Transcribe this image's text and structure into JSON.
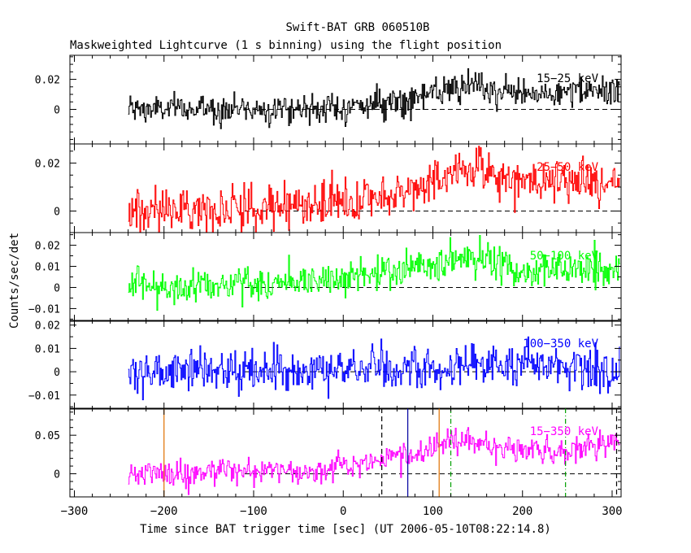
{
  "chart_data": {
    "type": "line",
    "title": "Swift-BAT GRB 060510B",
    "subtitle": "Maskweighted Lightcurve (1 s binning) using the flight position",
    "xlabel": "Time since BAT trigger time [sec] (UT 2006-05-10T08:22:14.8)",
    "ylabel": "Counts/sec/det",
    "xlim": [
      -305,
      310
    ],
    "xticks_major": [
      -300,
      -200,
      -100,
      0,
      100,
      200,
      300
    ],
    "xticks_labels": [
      "−300",
      "−200",
      "−100",
      "0",
      "100",
      "200",
      "300"
    ],
    "data_start": -240,
    "data_end": 308,
    "panels": [
      {
        "name": "15-25",
        "label": "15−25 keV",
        "color": "#000000",
        "ylim": [
          -0.023,
          0.036
        ],
        "yticks_major": [
          0,
          0.02
        ],
        "yticks_labels": [
          "0",
          "0.02"
        ],
        "yminor_step": 0.005,
        "noise": 0.0048,
        "trend": [
          [
            -240,
            0.0
          ],
          [
            0,
            0.001
          ],
          [
            50,
            0.005
          ],
          [
            100,
            0.01
          ],
          [
            140,
            0.015
          ],
          [
            200,
            0.01
          ],
          [
            300,
            0.012
          ]
        ],
        "vlines": []
      },
      {
        "name": "25-50",
        "label": "25−50 keV",
        "color": "#ff0000",
        "ylim": [
          -0.009,
          0.028
        ],
        "yticks_major": [
          0,
          0.02
        ],
        "yticks_labels": [
          "0",
          "0.02"
        ],
        "yminor_step": 0.005,
        "noise": 0.0045,
        "trend": [
          [
            -240,
            0.0
          ],
          [
            0,
            0.003
          ],
          [
            60,
            0.007
          ],
          [
            100,
            0.012
          ],
          [
            140,
            0.019
          ],
          [
            200,
            0.012
          ],
          [
            300,
            0.012
          ]
        ],
        "vlines": []
      },
      {
        "name": "50-100",
        "label": "50−100 keV",
        "color": "#00ff00",
        "ylim": [
          -0.016,
          0.026
        ],
        "yticks_major": [
          -0.01,
          0,
          0.01,
          0.02
        ],
        "yticks_labels": [
          "−0.01",
          "0",
          "0.01",
          "0.02"
        ],
        "yminor_step": 0.005,
        "noise": 0.0042,
        "trend": [
          [
            -240,
            0.0
          ],
          [
            -100,
            0.002
          ],
          [
            0,
            0.004
          ],
          [
            60,
            0.008
          ],
          [
            140,
            0.014
          ],
          [
            200,
            0.008
          ],
          [
            300,
            0.009
          ]
        ],
        "vlines": []
      },
      {
        "name": "100-350",
        "label": "100−350 keV",
        "color": "#0000ff",
        "ylim": [
          -0.016,
          0.022
        ],
        "yticks_major": [
          -0.01,
          0,
          0.01,
          0.02
        ],
        "yticks_labels": [
          "−0.01",
          "0",
          "0.01",
          "0.02"
        ],
        "yminor_step": 0.005,
        "noise": 0.0045,
        "trend": [
          [
            -240,
            0.0
          ],
          [
            100,
            0.001
          ],
          [
            150,
            0.004
          ],
          [
            300,
            0.001
          ]
        ],
        "vlines": []
      },
      {
        "name": "15-350",
        "label": "15−350 keV",
        "color": "#ff00ff",
        "ylim": [
          -0.03,
          0.085
        ],
        "yticks_major": [
          0,
          0.05
        ],
        "yticks_labels": [
          "0",
          "0.05"
        ],
        "yminor_step": 0.01,
        "noise": 0.0085,
        "trend": [
          [
            -240,
            0.0
          ],
          [
            -20,
            0.005
          ],
          [
            40,
            0.02
          ],
          [
            100,
            0.03
          ],
          [
            130,
            0.047
          ],
          [
            150,
            0.04
          ],
          [
            200,
            0.028
          ],
          [
            250,
            0.025
          ],
          [
            300,
            0.045
          ],
          [
            308,
            0.045
          ]
        ],
        "vlines": [
          {
            "x": -200,
            "color": "#e07000",
            "style": "solid"
          },
          {
            "x": 107,
            "color": "#e07000",
            "style": "solid"
          },
          {
            "x": 72,
            "color": "#0000a0",
            "style": "solid"
          },
          {
            "x": 43,
            "color": "#000000",
            "style": "dashed"
          },
          {
            "x": 305,
            "color": "#000000",
            "style": "dashed"
          },
          {
            "x": 120,
            "color": "#00a000",
            "style": "dashdot"
          },
          {
            "x": 248,
            "color": "#00a000",
            "style": "dashdot"
          }
        ]
      }
    ]
  }
}
